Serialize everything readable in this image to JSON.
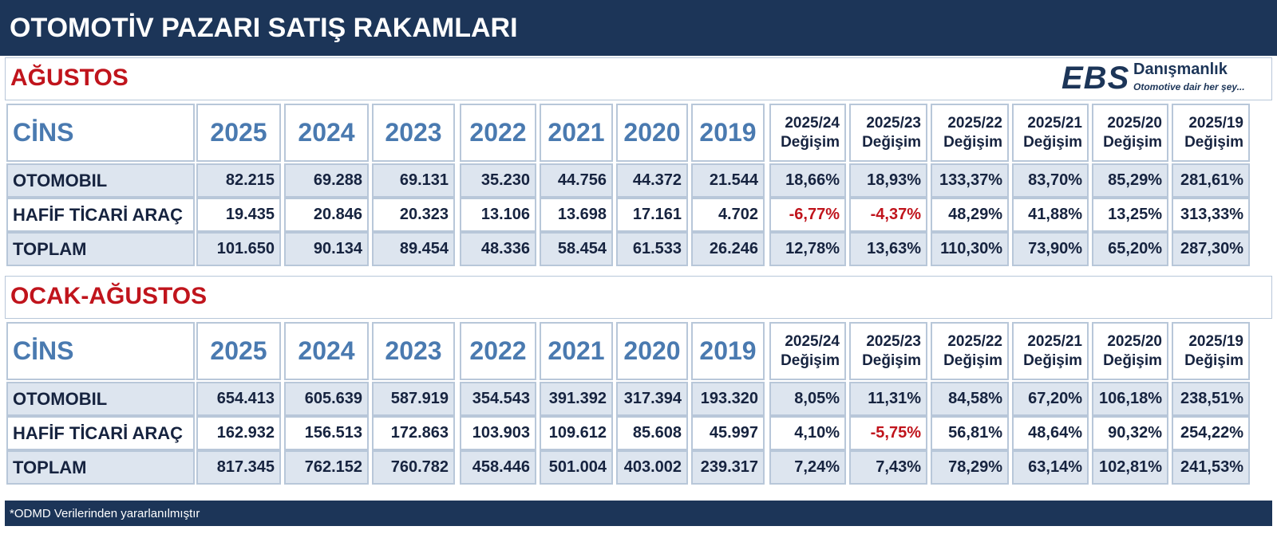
{
  "header": {
    "title": "OTOMOTİV PAZARI SATIŞ RAKAMLARI",
    "logo": {
      "mark": "EBS",
      "name": "Danışmanlık",
      "tagline": "Otomotive dair her şey..."
    }
  },
  "sections": [
    {
      "title": "AĞUSTOS",
      "columns": [
        "CİNS",
        "2025",
        "2024",
        "2023",
        "2022",
        "2021",
        "2020",
        "2019",
        {
          "period": "2025/24",
          "label": "Değişim"
        },
        {
          "period": "2025/23",
          "label": "Değişim"
        },
        {
          "period": "2025/22",
          "label": "Değişim"
        },
        {
          "period": "2025/21",
          "label": "Değişim"
        },
        {
          "period": "2025/20",
          "label": "Değişim"
        },
        {
          "period": "2025/19",
          "label": "Değişim"
        }
      ],
      "rows": [
        [
          "OTOMOBIL",
          "82.215",
          "69.288",
          "69.131",
          "35.230",
          "44.756",
          "44.372",
          "21.544",
          "18,66%",
          "18,93%",
          "133,37%",
          "83,70%",
          "85,29%",
          "281,61%"
        ],
        [
          "HAFİF TİCARİ ARAÇ",
          "19.435",
          "20.846",
          "20.323",
          "13.106",
          "13.698",
          "17.161",
          "4.702",
          "-6,77%",
          "-4,37%",
          "48,29%",
          "41,88%",
          "13,25%",
          "313,33%"
        ],
        [
          "TOPLAM",
          "101.650",
          "90.134",
          "89.454",
          "48.336",
          "58.454",
          "61.533",
          "26.246",
          "12,78%",
          "13,63%",
          "110,30%",
          "73,90%",
          "65,20%",
          "287,30%"
        ]
      ]
    },
    {
      "title": "OCAK-AĞUSTOS",
      "columns": [
        "CİNS",
        "2025",
        "2024",
        "2023",
        "2022",
        "2021",
        "2020",
        "2019",
        {
          "period": "2025/24",
          "label": "Değişim"
        },
        {
          "period": "2025/23",
          "label": "Değişim"
        },
        {
          "period": "2025/22",
          "label": "Değişim"
        },
        {
          "period": "2025/21",
          "label": "Değişim"
        },
        {
          "period": "2025/20",
          "label": "Değişim"
        },
        {
          "period": "2025/19",
          "label": "Değişim"
        }
      ],
      "rows": [
        [
          "OTOMOBIL",
          "654.413",
          "605.639",
          "587.919",
          "354.543",
          "391.392",
          "317.394",
          "193.320",
          "8,05%",
          "11,31%",
          "84,58%",
          "67,20%",
          "106,18%",
          "238,51%"
        ],
        [
          "HAFİF TİCARİ ARAÇ",
          "162.932",
          "156.513",
          "172.863",
          "103.903",
          "109.612",
          "85.608",
          "45.997",
          "4,10%",
          "-5,75%",
          "56,81%",
          "48,64%",
          "90,32%",
          "254,22%"
        ],
        [
          "TOPLAM",
          "817.345",
          "762.152",
          "760.782",
          "458.446",
          "501.004",
          "403.002",
          "239.317",
          "7,24%",
          "7,43%",
          "78,29%",
          "63,14%",
          "102,81%",
          "241,53%"
        ]
      ]
    }
  ],
  "footer": "*ODMD Verilerinden yararlanılmıştır"
}
